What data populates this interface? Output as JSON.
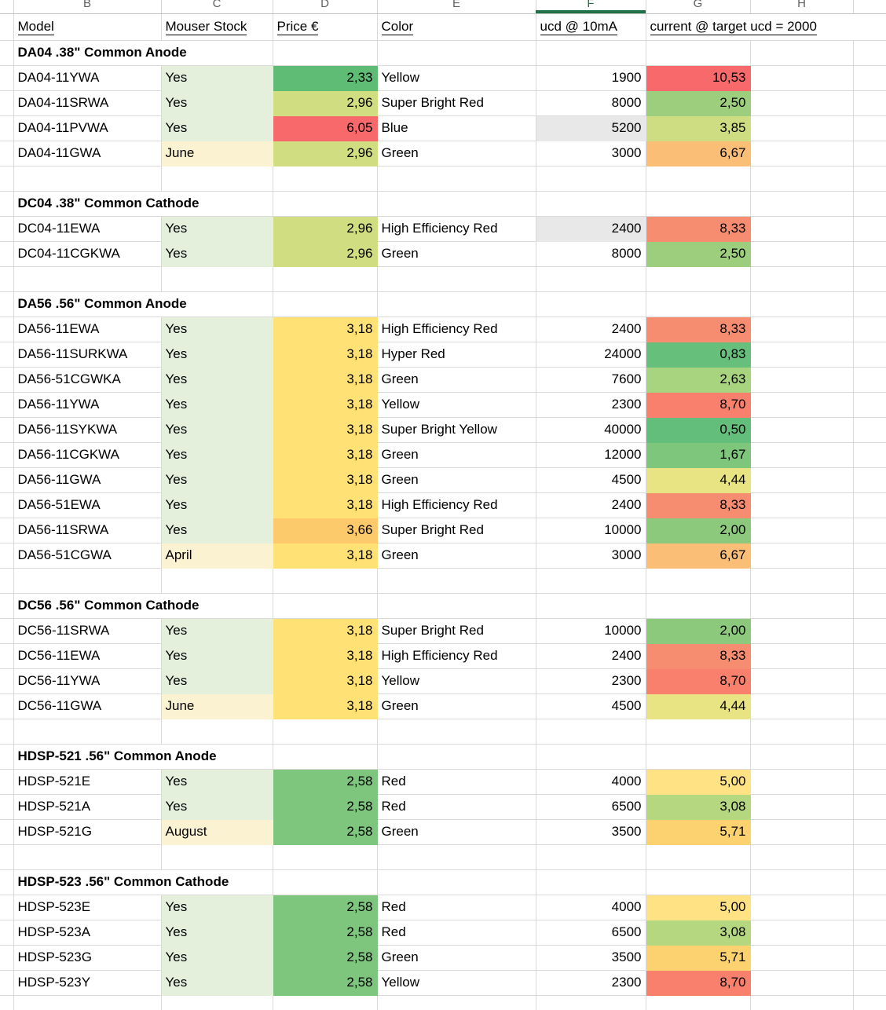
{
  "app": {
    "selected_column": "F",
    "accent_green": "#1F7245",
    "gridline_color": "#D9D9D9",
    "highlight_gray": "#E8E8E8"
  },
  "columns": {
    "letters": [
      "B",
      "C",
      "D",
      "E",
      "F",
      "G",
      "H"
    ]
  },
  "headers": {
    "model": "Model",
    "stock": "Mouser Stock",
    "price": "Price €",
    "color": "Color",
    "ucd": "ucd @ 10mA",
    "current": "current @ target ucd = 2000"
  },
  "palette": {
    "stock_yes": "#E4EFDC",
    "stock_month": "#FBF2D2",
    "scale_green": "#63BE7B",
    "scale_yellow": "#FFE175",
    "scale_red": "#F8696B"
  },
  "sections": [
    {
      "title": "DA04 .38\" Common Anode",
      "rows": [
        {
          "model": "DA04-11YWA",
          "stock": "Yes",
          "stock_bg": "#E4EFDC",
          "price": "2,33",
          "price_bg": "#5FBC74",
          "color": "Yellow",
          "ucd": "1900",
          "ucd_bg": null,
          "current": "10,53",
          "current_bg": "#F8696B"
        },
        {
          "model": "DA04-11SRWA",
          "stock": "Yes",
          "stock_bg": "#E4EFDC",
          "price": "2,96",
          "price_bg": "#D0DD81",
          "color": "Super Bright Red",
          "ucd": "8000",
          "ucd_bg": null,
          "current": "2,50",
          "current_bg": "#9CCE7D"
        },
        {
          "model": "DA04-11PVWA",
          "stock": "Yes",
          "stock_bg": "#E4EFDC",
          "price": "6,05",
          "price_bg": "#F8696B",
          "color": "Blue",
          "ucd": "5200",
          "ucd_bg": "#E8E8E8",
          "current": "3,85",
          "current_bg": "#CEDD81"
        },
        {
          "model": "DA04-11GWA",
          "stock": "June",
          "stock_bg": "#FBF2D2",
          "price": "2,96",
          "price_bg": "#D0DD81",
          "color": "Green",
          "ucd": "3000",
          "ucd_bg": null,
          "current": "6,67",
          "current_bg": "#FBBE77"
        }
      ]
    },
    {
      "title": "DC04 .38\" Common Cathode",
      "rows": [
        {
          "model": "DC04-11EWA",
          "stock": "Yes",
          "stock_bg": "#E4EFDC",
          "price": "2,96",
          "price_bg": "#D0DD81",
          "color": "High Efficiency Red",
          "ucd": "2400",
          "ucd_bg": "#E8E8E8",
          "current": "8,33",
          "current_bg": "#F78D70"
        },
        {
          "model": "DC04-11CGKWA",
          "stock": "Yes",
          "stock_bg": "#E4EFDC",
          "price": "2,96",
          "price_bg": "#D0DD81",
          "color": "Green",
          "ucd": "8000",
          "ucd_bg": null,
          "current": "2,50",
          "current_bg": "#9CCE7D"
        }
      ]
    },
    {
      "title": "DA56 .56\" Common Anode",
      "rows": [
        {
          "model": "DA56-11EWA",
          "stock": "Yes",
          "stock_bg": "#E4EFDC",
          "price": "3,18",
          "price_bg": "#FFE175",
          "color": "High Efficiency Red",
          "ucd": "2400",
          "ucd_bg": null,
          "current": "8,33",
          "current_bg": "#F78D70"
        },
        {
          "model": "DA56-11SURKWA",
          "stock": "Yes",
          "stock_bg": "#E4EFDC",
          "price": "3,18",
          "price_bg": "#FFE175",
          "color": "Hyper Red",
          "ucd": "24000",
          "ucd_bg": null,
          "current": "0,83",
          "current_bg": "#66BF7B"
        },
        {
          "model": "DA56-51CGWKA",
          "stock": "Yes",
          "stock_bg": "#E4EFDC",
          "price": "3,18",
          "price_bg": "#FFE175",
          "color": "Green",
          "ucd": "7600",
          "ucd_bg": null,
          "current": "2,63",
          "current_bg": "#A8D37F"
        },
        {
          "model": "DA56-11YWA",
          "stock": "Yes",
          "stock_bg": "#E4EFDC",
          "price": "3,18",
          "price_bg": "#FFE175",
          "color": "Yellow",
          "ucd": "2300",
          "ucd_bg": null,
          "current": "8,70",
          "current_bg": "#F8806C"
        },
        {
          "model": "DA56-11SYKWA",
          "stock": "Yes",
          "stock_bg": "#E4EFDC",
          "price": "3,18",
          "price_bg": "#FFE175",
          "color": "Super Bright Yellow",
          "ucd": "40000",
          "ucd_bg": null,
          "current": "0,50",
          "current_bg": "#63BE7B"
        },
        {
          "model": "DA56-11CGKWA",
          "stock": "Yes",
          "stock_bg": "#E4EFDC",
          "price": "3,18",
          "price_bg": "#FFE175",
          "color": "Green",
          "ucd": "12000",
          "ucd_bg": null,
          "current": "1,67",
          "current_bg": "#7EC67C"
        },
        {
          "model": "DA56-11GWA",
          "stock": "Yes",
          "stock_bg": "#E4EFDC",
          "price": "3,18",
          "price_bg": "#FFE175",
          "color": "Green",
          "ucd": "4500",
          "ucd_bg": null,
          "current": "4,44",
          "current_bg": "#E9E483"
        },
        {
          "model": "DA56-51EWA",
          "stock": "Yes",
          "stock_bg": "#E4EFDC",
          "price": "3,18",
          "price_bg": "#FFE175",
          "color": "High Efficiency Red",
          "ucd": "2400",
          "ucd_bg": null,
          "current": "8,33",
          "current_bg": "#F78D70"
        },
        {
          "model": "DA56-11SRWA",
          "stock": "Yes",
          "stock_bg": "#E4EFDC",
          "price": "3,66",
          "price_bg": "#FCC96B",
          "color": "Super Bright Red",
          "ucd": "10000",
          "ucd_bg": null,
          "current": "2,00",
          "current_bg": "#8CC97C"
        },
        {
          "model": "DA56-51CGWA",
          "stock": "April",
          "stock_bg": "#FBF2D2",
          "price": "3,18",
          "price_bg": "#FFE175",
          "color": "Green",
          "ucd": "3000",
          "ucd_bg": null,
          "current": "6,67",
          "current_bg": "#FBBE77"
        }
      ]
    },
    {
      "title": "DC56 .56\" Common Cathode",
      "rows": [
        {
          "model": "DC56-11SRWA",
          "stock": "Yes",
          "stock_bg": "#E4EFDC",
          "price": "3,18",
          "price_bg": "#FFE175",
          "color": "Super Bright Red",
          "ucd": "10000",
          "ucd_bg": null,
          "current": "2,00",
          "current_bg": "#8CC97C"
        },
        {
          "model": "DC56-11EWA",
          "stock": "Yes",
          "stock_bg": "#E4EFDC",
          "price": "3,18",
          "price_bg": "#FFE175",
          "color": "High Efficiency Red",
          "ucd": "2400",
          "ucd_bg": null,
          "current": "8,33",
          "current_bg": "#F78D70"
        },
        {
          "model": "DC56-11YWA",
          "stock": "Yes",
          "stock_bg": "#E4EFDC",
          "price": "3,18",
          "price_bg": "#FFE175",
          "color": "Yellow",
          "ucd": "2300",
          "ucd_bg": null,
          "current": "8,70",
          "current_bg": "#F8806C"
        },
        {
          "model": "DC56-11GWA",
          "stock": "June",
          "stock_bg": "#FBF2D2",
          "price": "3,18",
          "price_bg": "#FFE175",
          "color": "Green",
          "ucd": "4500",
          "ucd_bg": null,
          "current": "4,44",
          "current_bg": "#E9E483"
        }
      ]
    },
    {
      "title": "HDSP-521 .56\" Common Anode",
      "rows": [
        {
          "model": "HDSP-521E",
          "stock": "Yes",
          "stock_bg": "#E4EFDC",
          "price": "2,58",
          "price_bg": "#7EC57D",
          "color": "Red",
          "ucd": "4000",
          "ucd_bg": null,
          "current": "5,00",
          "current_bg": "#FFE284"
        },
        {
          "model": "HDSP-521A",
          "stock": "Yes",
          "stock_bg": "#E4EFDC",
          "price": "2,58",
          "price_bg": "#7EC57D",
          "color": "Red",
          "ucd": "6500",
          "ucd_bg": null,
          "current": "3,08",
          "current_bg": "#B5D77F"
        },
        {
          "model": "HDSP-521G",
          "stock": "August",
          "stock_bg": "#FBF2D2",
          "price": "2,58",
          "price_bg": "#7EC57D",
          "color": "Green",
          "ucd": "3500",
          "ucd_bg": null,
          "current": "5,71",
          "current_bg": "#FCD270"
        }
      ]
    },
    {
      "title": "HDSP-523 .56\" Common Cathode",
      "rows": [
        {
          "model": "HDSP-523E",
          "stock": "Yes",
          "stock_bg": "#E4EFDC",
          "price": "2,58",
          "price_bg": "#7EC57D",
          "color": "Red",
          "ucd": "4000",
          "ucd_bg": null,
          "current": "5,00",
          "current_bg": "#FFE284"
        },
        {
          "model": "HDSP-523A",
          "stock": "Yes",
          "stock_bg": "#E4EFDC",
          "price": "2,58",
          "price_bg": "#7EC57D",
          "color": "Red",
          "ucd": "6500",
          "ucd_bg": null,
          "current": "3,08",
          "current_bg": "#B5D77F"
        },
        {
          "model": "HDSP-523G",
          "stock": "Yes",
          "stock_bg": "#E4EFDC",
          "price": "2,58",
          "price_bg": "#7EC57D",
          "color": "Green",
          "ucd": "3500",
          "ucd_bg": null,
          "current": "5,71",
          "current_bg": "#FCD270"
        },
        {
          "model": "HDSP-523Y",
          "stock": "Yes",
          "stock_bg": "#E4EFDC",
          "price": "2,58",
          "price_bg": "#7EC57D",
          "color": "Yellow",
          "ucd": "2300",
          "ucd_bg": null,
          "current": "8,70",
          "current_bg": "#F8806C"
        }
      ]
    }
  ]
}
